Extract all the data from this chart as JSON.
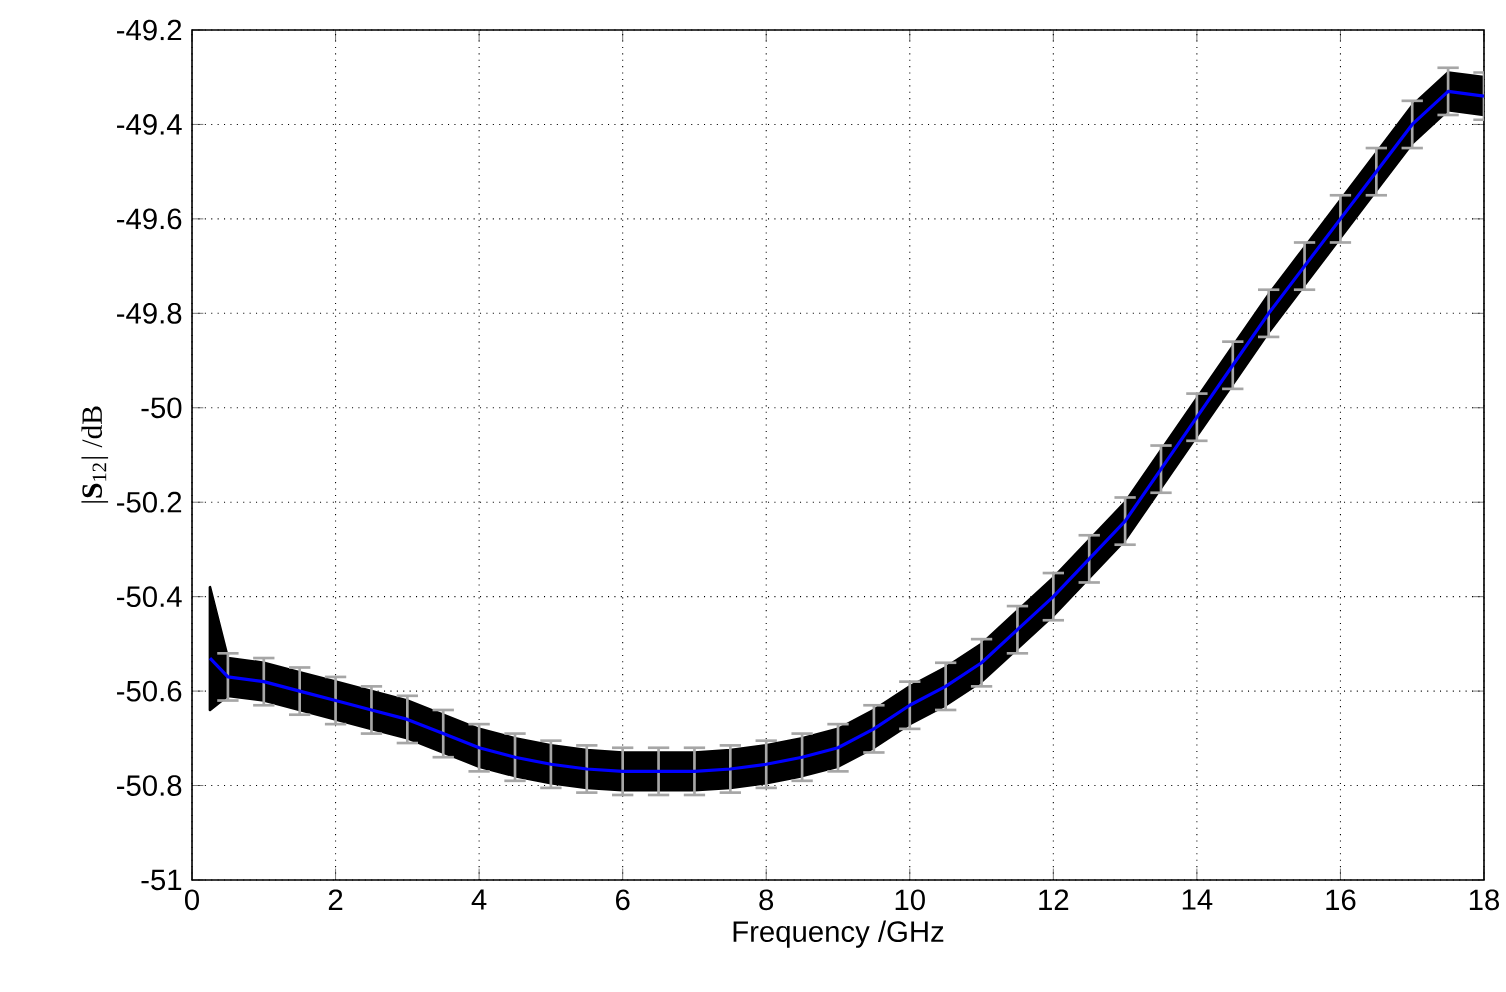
{
  "chart_data": {
    "type": "line",
    "xlabel": "Frequency /GHz",
    "ylabel": "|**S**$_{12}$| /dB",
    "xlim": [
      0,
      18
    ],
    "ylim": [
      -51,
      -49.2
    ],
    "xticks": [
      0,
      2,
      4,
      6,
      8,
      10,
      12,
      14,
      16,
      18
    ],
    "yticks": [
      -51,
      -50.8,
      -50.6,
      -50.4,
      -50.2,
      -50,
      -49.8,
      -49.6,
      -49.4,
      -49.2
    ],
    "grid": true,
    "line_style": "solid",
    "marker": "none",
    "x": [
      0.25,
      0.5,
      1,
      1.5,
      2,
      2.5,
      3,
      3.5,
      4,
      4.5,
      5,
      5.5,
      6,
      6.5,
      7,
      7.5,
      8,
      8.5,
      9,
      9.5,
      10,
      10.5,
      11,
      11.5,
      12,
      12.5,
      13,
      13.5,
      14,
      14.5,
      15,
      15.5,
      16,
      16.5,
      17,
      17.5,
      18
    ],
    "series": [
      {
        "color": "#0000ff",
        "values": [
          -50.53,
          -50.57,
          -50.58,
          -50.6,
          -50.62,
          -50.64,
          -50.66,
          -50.69,
          -50.72,
          -50.74,
          -50.755,
          -50.765,
          -50.77,
          -50.77,
          -50.77,
          -50.765,
          -50.755,
          -50.74,
          -50.72,
          -50.68,
          -50.63,
          -50.59,
          -50.54,
          -50.47,
          -50.4,
          -50.32,
          -50.24,
          -50.13,
          -50.02,
          -49.91,
          -49.8,
          -49.7,
          -49.6,
          -49.5,
          -49.4,
          -49.33,
          -49.34
        ],
        "lower": [
          -50.64,
          -50.61,
          -50.62,
          -50.64,
          -50.66,
          -50.68,
          -50.7,
          -50.73,
          -50.76,
          -50.78,
          -50.795,
          -50.805,
          -50.81,
          -50.81,
          -50.81,
          -50.805,
          -50.795,
          -50.78,
          -50.76,
          -50.72,
          -50.67,
          -50.63,
          -50.58,
          -50.51,
          -50.44,
          -50.36,
          -50.28,
          -50.17,
          -50.06,
          -49.95,
          -49.84,
          -49.74,
          -49.64,
          -49.54,
          -49.44,
          -49.37,
          -49.38
        ],
        "upper": [
          -50.38,
          -50.53,
          -50.54,
          -50.56,
          -50.58,
          -50.6,
          -50.62,
          -50.65,
          -50.68,
          -50.7,
          -50.715,
          -50.725,
          -50.73,
          -50.73,
          -50.73,
          -50.725,
          -50.715,
          -50.7,
          -50.68,
          -50.64,
          -50.59,
          -50.55,
          -50.5,
          -50.43,
          -50.36,
          -50.28,
          -50.2,
          -50.09,
          -49.98,
          -49.87,
          -49.76,
          -49.66,
          -49.56,
          -49.46,
          -49.36,
          -49.29,
          -49.3
        ],
        "errors": [
          null,
          0.05,
          0.05,
          0.05,
          0.05,
          0.05,
          0.05,
          0.05,
          0.05,
          0.05,
          0.05,
          0.05,
          0.05,
          0.05,
          0.05,
          0.05,
          0.05,
          0.05,
          0.05,
          0.05,
          0.05,
          0.05,
          0.05,
          0.05,
          0.05,
          0.05,
          0.05,
          0.05,
          0.05,
          0.05,
          0.05,
          0.05,
          0.05,
          0.05,
          0.05,
          0.05,
          0.05
        ]
      }
    ]
  }
}
